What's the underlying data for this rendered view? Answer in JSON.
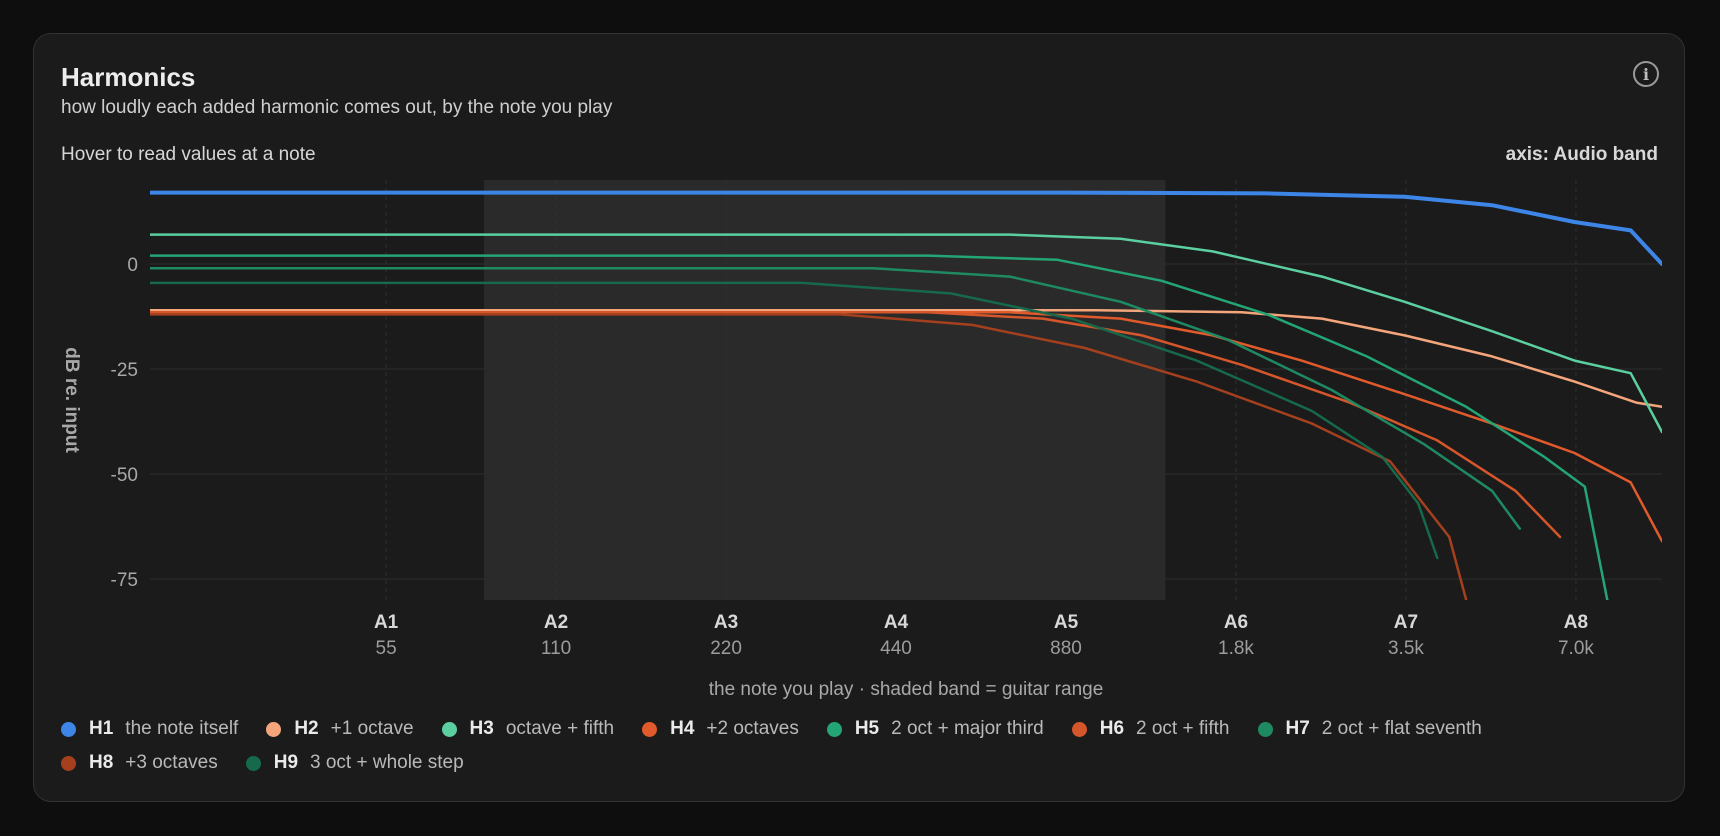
{
  "header": {
    "title": "Harmonics",
    "subtitle": "how loudly each added harmonic comes out, by the note you play",
    "info_icon": "info-icon",
    "info_glyph": "i"
  },
  "toolbar": {
    "hint": "Hover to read values at a note",
    "axis_toggle": "axis: Audio band"
  },
  "chart_data": {
    "type": "line",
    "xscale": "log2",
    "xlim": [
      21,
      10000
    ],
    "ylim": [
      -80,
      20
    ],
    "yticks": [
      0,
      -25,
      -50,
      -75
    ],
    "ylabel": "dB re. input",
    "xlabel": "the note you play",
    "xlabel_sep": "·",
    "band_note": "shaded band = guitar range",
    "shaded_band": [
      82,
      1320
    ],
    "grid": true,
    "xticks": [
      {
        "note": "A1",
        "freq": 55,
        "label": "55"
      },
      {
        "note": "A2",
        "freq": 110,
        "label": "110"
      },
      {
        "note": "A3",
        "freq": 220,
        "label": "220"
      },
      {
        "note": "A4",
        "freq": 440,
        "label": "440"
      },
      {
        "note": "A5",
        "freq": 880,
        "label": "880"
      },
      {
        "note": "A6",
        "freq": 1760,
        "label": "1.8k"
      },
      {
        "note": "A7",
        "freq": 3520,
        "label": "3.5k"
      },
      {
        "note": "A8",
        "freq": 7040,
        "label": "7.0k"
      }
    ],
    "series": [
      {
        "name": "H1",
        "desc": "the note itself",
        "color": "#3d86e8",
        "width": 4,
        "points": [
          [
            21,
            17
          ],
          [
            880,
            17
          ],
          [
            2000,
            16.8
          ],
          [
            3500,
            16
          ],
          [
            5000,
            14
          ],
          [
            7000,
            10
          ],
          [
            8800,
            8
          ],
          [
            10000,
            0
          ]
        ]
      },
      {
        "name": "H2",
        "desc": "+1 octave",
        "color": "#f4a57b",
        "width": 2.5,
        "points": [
          [
            21,
            -11
          ],
          [
            1000,
            -11
          ],
          [
            1800,
            -11.5
          ],
          [
            2500,
            -13
          ],
          [
            3500,
            -17
          ],
          [
            5000,
            -22
          ],
          [
            7000,
            -28
          ],
          [
            9000,
            -33
          ],
          [
            10000,
            -34
          ]
        ]
      },
      {
        "name": "H3",
        "desc": "octave + fifth",
        "color": "#5ccfa0",
        "width": 2.5,
        "points": [
          [
            21,
            7
          ],
          [
            700,
            7
          ],
          [
            1100,
            6
          ],
          [
            1600,
            3
          ],
          [
            2500,
            -3
          ],
          [
            3500,
            -9
          ],
          [
            5000,
            -16
          ],
          [
            7000,
            -23
          ],
          [
            8800,
            -26
          ],
          [
            10000,
            -40
          ]
        ]
      },
      {
        "name": "H4",
        "desc": "+2 octaves",
        "color": "#e05a2b",
        "width": 2.5,
        "points": [
          [
            21,
            -11.5
          ],
          [
            700,
            -11.5
          ],
          [
            1100,
            -13
          ],
          [
            1600,
            -17
          ],
          [
            2300,
            -23
          ],
          [
            3500,
            -31
          ],
          [
            5000,
            -38
          ],
          [
            7000,
            -45
          ],
          [
            8800,
            -52
          ],
          [
            10000,
            -66
          ]
        ]
      },
      {
        "name": "H5",
        "desc": "2 oct + major third",
        "color": "#23a575",
        "width": 2.5,
        "points": [
          [
            21,
            2
          ],
          [
            500,
            2
          ],
          [
            850,
            1
          ],
          [
            1300,
            -4
          ],
          [
            2000,
            -12
          ],
          [
            3000,
            -22
          ],
          [
            4500,
            -34
          ],
          [
            6200,
            -46
          ],
          [
            7300,
            -53
          ],
          [
            8000,
            -80
          ]
        ]
      },
      {
        "name": "H6",
        "desc": "2 oct + fifth",
        "color": "#d4562a",
        "width": 2.5,
        "points": [
          [
            21,
            -11.5
          ],
          [
            500,
            -11.5
          ],
          [
            800,
            -13
          ],
          [
            1200,
            -17
          ],
          [
            1800,
            -24
          ],
          [
            2800,
            -33
          ],
          [
            4000,
            -42
          ],
          [
            5500,
            -54
          ],
          [
            6600,
            -65
          ]
        ]
      },
      {
        "name": "H7",
        "desc": "2 oct + flat seventh",
        "color": "#1f8a62",
        "width": 2.5,
        "points": [
          [
            21,
            -1
          ],
          [
            400,
            -1
          ],
          [
            700,
            -3
          ],
          [
            1100,
            -9
          ],
          [
            1700,
            -18
          ],
          [
            2600,
            -30
          ],
          [
            3800,
            -43
          ],
          [
            5000,
            -54
          ],
          [
            5600,
            -63
          ]
        ]
      },
      {
        "name": "H8",
        "desc": "+3 octaves",
        "color": "#a5401e",
        "width": 2.5,
        "points": [
          [
            21,
            -12
          ],
          [
            350,
            -12
          ],
          [
            600,
            -14.5
          ],
          [
            950,
            -20
          ],
          [
            1500,
            -28
          ],
          [
            2400,
            -38
          ],
          [
            3300,
            -47
          ],
          [
            4200,
            -65
          ],
          [
            4500,
            -80
          ]
        ]
      },
      {
        "name": "H9",
        "desc": "3 oct + whole step",
        "color": "#16694b",
        "width": 2.5,
        "points": [
          [
            21,
            -4.5
          ],
          [
            300,
            -4.5
          ],
          [
            550,
            -7
          ],
          [
            900,
            -13
          ],
          [
            1500,
            -23
          ],
          [
            2400,
            -35
          ],
          [
            3200,
            -46
          ],
          [
            3700,
            -57
          ],
          [
            4000,
            -70
          ]
        ]
      }
    ]
  }
}
